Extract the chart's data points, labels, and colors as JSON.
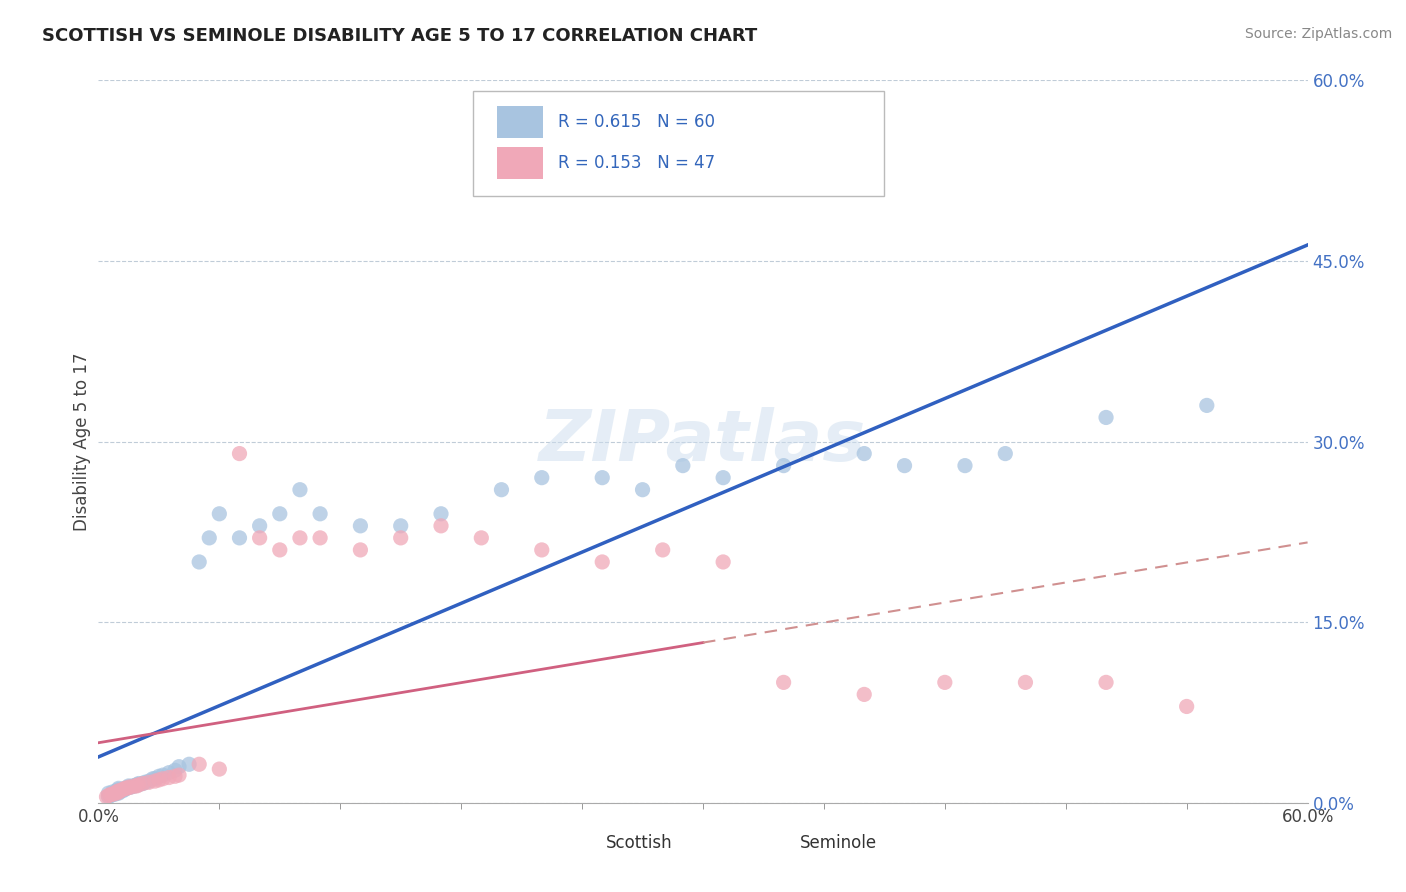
{
  "title": "SCOTTISH VS SEMINOLE DISABILITY AGE 5 TO 17 CORRELATION CHART",
  "source": "Source: ZipAtlas.com",
  "ylabel": "Disability Age 5 to 17",
  "xlim": [
    0.0,
    0.6
  ],
  "ylim": [
    0.0,
    0.6
  ],
  "ytick_positions": [
    0.0,
    0.15,
    0.3,
    0.45,
    0.6
  ],
  "ytick_labels": [
    "0.0%",
    "15.0%",
    "30.0%",
    "45.0%",
    "60.0%"
  ],
  "xtick_positions": [
    0.0,
    0.6
  ],
  "xtick_labels": [
    "0.0%",
    "60.0%"
  ],
  "R1": "0.615",
  "N1": "60",
  "R2": "0.153",
  "N2": "47",
  "scottish_color": "#a8c4e0",
  "seminole_color": "#f0a8b8",
  "line1_color": "#3060c0",
  "line2_color": "#d06080",
  "line2_dash_color": "#d09090",
  "background_color": "#ffffff",
  "grid_color": "#c0ccd8",
  "watermark": "ZIPatlas",
  "scottish_x": [
    0.005,
    0.005,
    0.006,
    0.007,
    0.007,
    0.008,
    0.009,
    0.009,
    0.01,
    0.01,
    0.01,
    0.01,
    0.01,
    0.012,
    0.013,
    0.013,
    0.014,
    0.015,
    0.015,
    0.016,
    0.017,
    0.018,
    0.019,
    0.02,
    0.02,
    0.022,
    0.023,
    0.025,
    0.027,
    0.028,
    0.03,
    0.032,
    0.035,
    0.038,
    0.04,
    0.045,
    0.05,
    0.055,
    0.06,
    0.07,
    0.08,
    0.09,
    0.1,
    0.11,
    0.13,
    0.15,
    0.17,
    0.2,
    0.22,
    0.25,
    0.27,
    0.29,
    0.31,
    0.34,
    0.38,
    0.4,
    0.43,
    0.45,
    0.5,
    0.55
  ],
  "scottish_y": [
    0.005,
    0.008,
    0.006,
    0.007,
    0.009,
    0.007,
    0.008,
    0.01,
    0.008,
    0.009,
    0.01,
    0.011,
    0.012,
    0.01,
    0.011,
    0.012,
    0.012,
    0.013,
    0.014,
    0.013,
    0.014,
    0.014,
    0.015,
    0.015,
    0.016,
    0.016,
    0.017,
    0.018,
    0.02,
    0.02,
    0.022,
    0.023,
    0.025,
    0.027,
    0.03,
    0.032,
    0.2,
    0.22,
    0.24,
    0.22,
    0.23,
    0.24,
    0.26,
    0.24,
    0.23,
    0.23,
    0.24,
    0.26,
    0.27,
    0.27,
    0.26,
    0.28,
    0.27,
    0.28,
    0.29,
    0.28,
    0.28,
    0.29,
    0.32,
    0.33
  ],
  "seminole_x": [
    0.004,
    0.005,
    0.006,
    0.007,
    0.008,
    0.009,
    0.009,
    0.01,
    0.01,
    0.011,
    0.012,
    0.013,
    0.014,
    0.015,
    0.016,
    0.018,
    0.019,
    0.02,
    0.022,
    0.025,
    0.028,
    0.03,
    0.032,
    0.035,
    0.038,
    0.04,
    0.05,
    0.06,
    0.07,
    0.08,
    0.09,
    0.1,
    0.11,
    0.13,
    0.15,
    0.17,
    0.19,
    0.22,
    0.25,
    0.28,
    0.31,
    0.34,
    0.38,
    0.42,
    0.46,
    0.5,
    0.54
  ],
  "seminole_y": [
    0.005,
    0.006,
    0.007,
    0.007,
    0.008,
    0.008,
    0.009,
    0.009,
    0.01,
    0.01,
    0.011,
    0.012,
    0.012,
    0.013,
    0.013,
    0.014,
    0.014,
    0.015,
    0.016,
    0.017,
    0.018,
    0.019,
    0.02,
    0.021,
    0.022,
    0.023,
    0.032,
    0.028,
    0.29,
    0.22,
    0.21,
    0.22,
    0.22,
    0.21,
    0.22,
    0.23,
    0.22,
    0.21,
    0.2,
    0.21,
    0.2,
    0.1,
    0.09,
    0.1,
    0.1,
    0.1,
    0.08
  ]
}
